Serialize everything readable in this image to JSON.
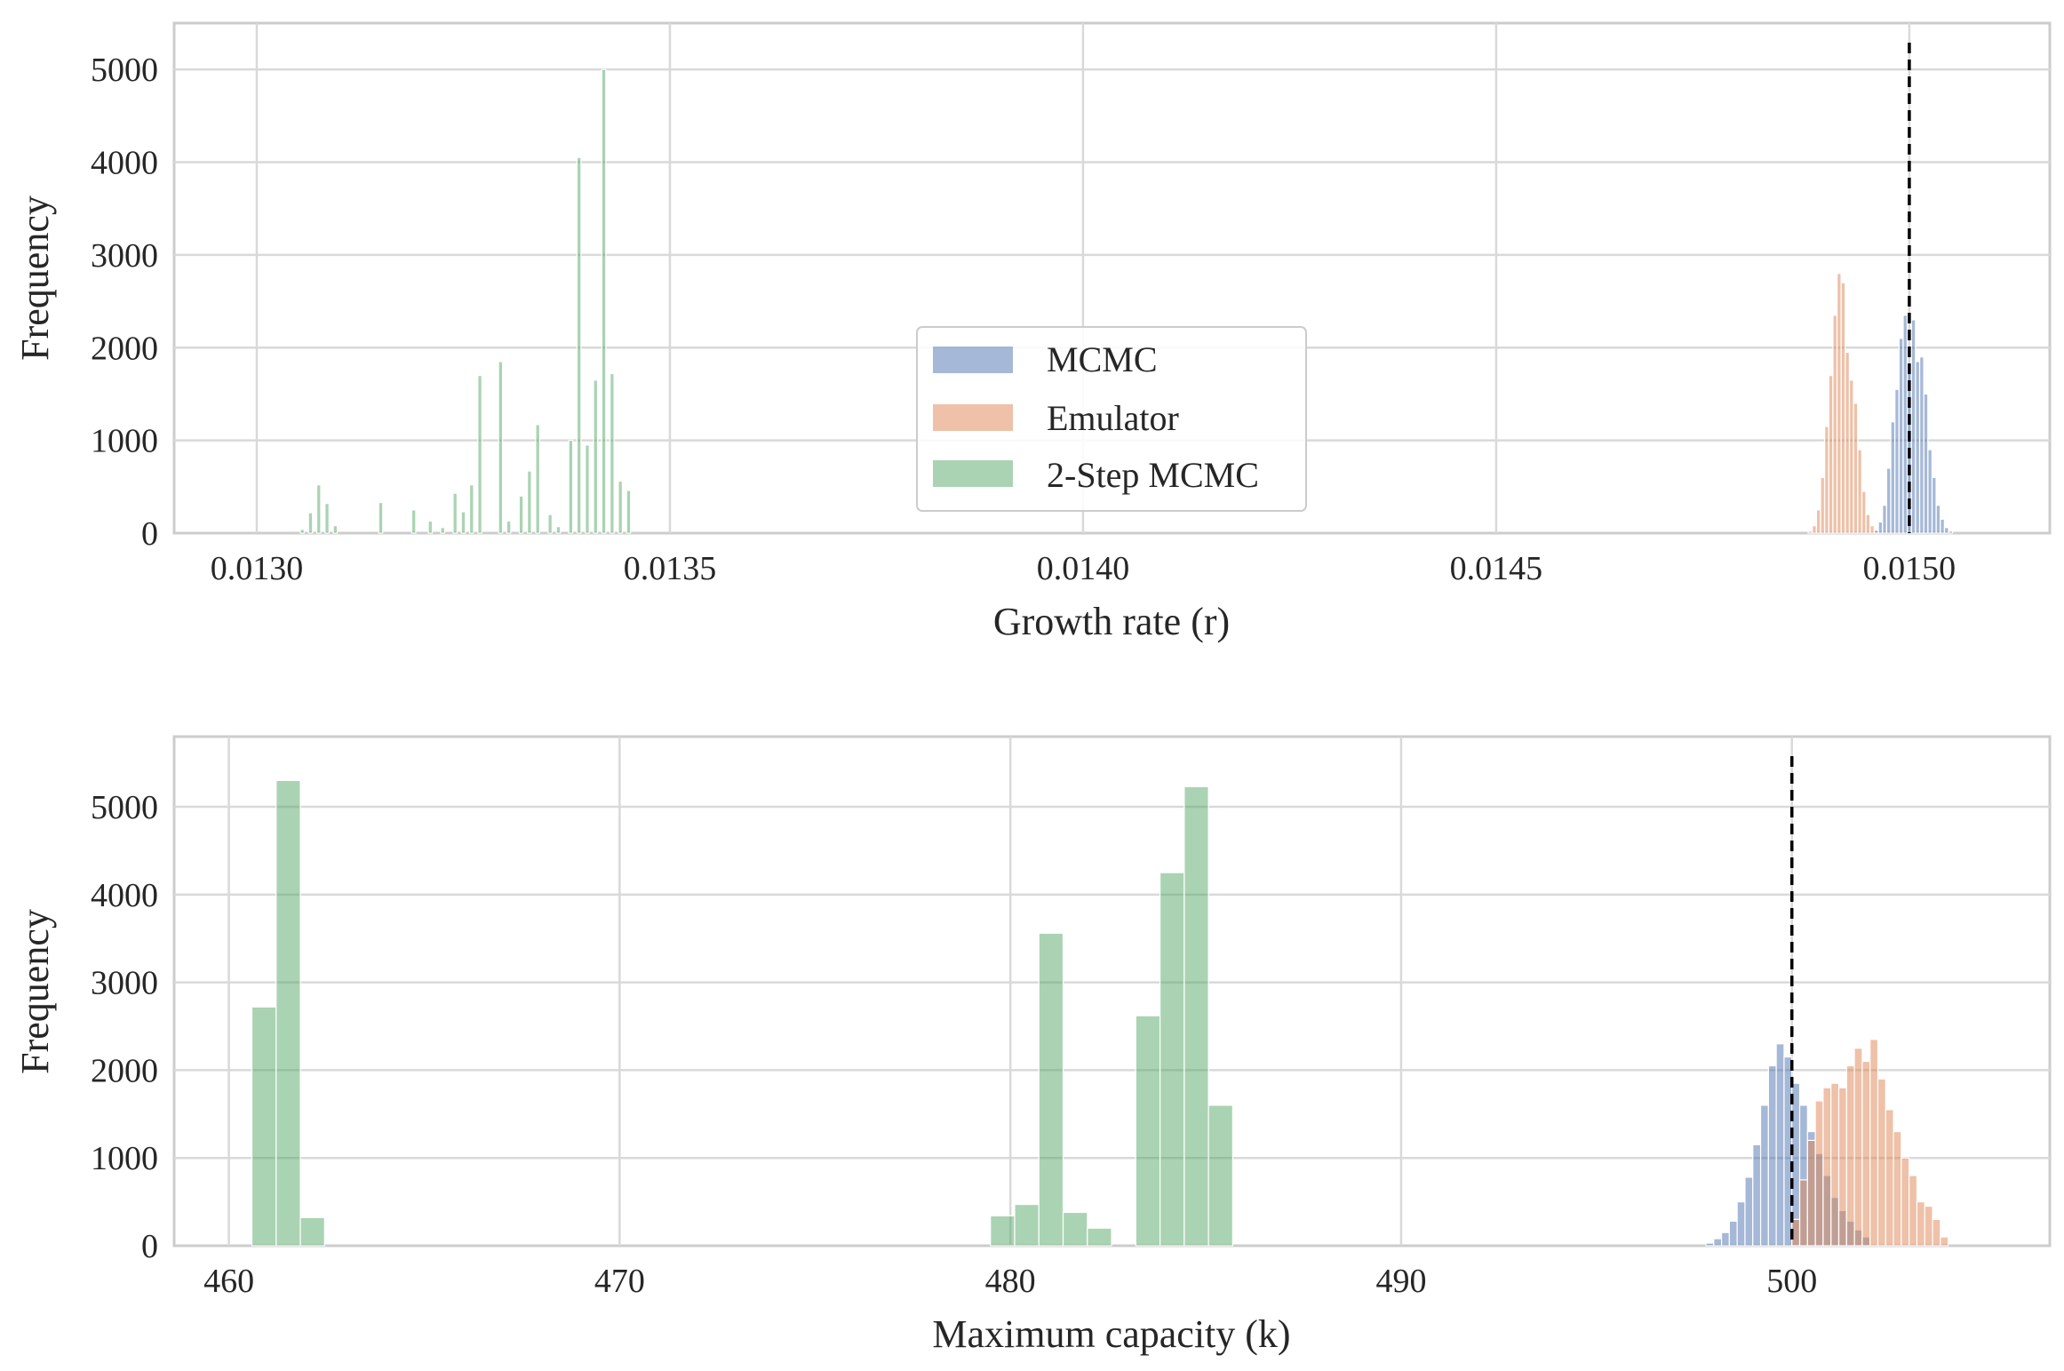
{
  "colors": {
    "mcmc": "#4C72B0",
    "emulator": "#DD8452",
    "two_step": "#55A868",
    "grid": "#d9d9d9",
    "frame": "#cccccc",
    "reference_line": "#000000"
  },
  "legend": {
    "placement": "center",
    "entries": [
      {
        "key": "mcmc",
        "label": "MCMC"
      },
      {
        "key": "emulator",
        "label": "Emulator"
      },
      {
        "key": "two_step",
        "label": "2-Step MCMC"
      }
    ]
  },
  "chart_data": [
    {
      "type": "bar",
      "title": "",
      "xlabel": "Growth rate (r)",
      "ylabel": "Frequency",
      "xlim": [
        0.0129,
        0.01517
      ],
      "ylim": [
        0,
        5500
      ],
      "xticks": [
        0.013,
        0.0135,
        0.014,
        0.0145,
        0.015
      ],
      "xtick_labels": [
        "0.0130",
        "0.0135",
        "0.0140",
        "0.0145",
        "0.0150"
      ],
      "yticks": [
        0,
        1000,
        2000,
        3000,
        4000,
        5000
      ],
      "ytick_labels": [
        "0",
        "1000",
        "2000",
        "3000",
        "4000",
        "5000"
      ],
      "grid": true,
      "reference_line_x": 0.015,
      "series": [
        {
          "name": "MCMC",
          "key": "mcmc",
          "bin_width": 4.8e-06,
          "bins": [
            [
              0.01496,
              40
            ],
            [
              0.014965,
              120
            ],
            [
              0.01497,
              300
            ],
            [
              0.014975,
              700
            ],
            [
              0.01498,
              1200
            ],
            [
              0.014985,
              1550
            ],
            [
              0.01499,
              2100
            ],
            [
              0.014995,
              2350
            ],
            [
              0.015,
              1800
            ],
            [
              0.015005,
              2300
            ],
            [
              0.01501,
              1850
            ],
            [
              0.015015,
              1900
            ],
            [
              0.01502,
              1500
            ],
            [
              0.015025,
              900
            ],
            [
              0.01503,
              600
            ],
            [
              0.015035,
              300
            ],
            [
              0.01504,
              150
            ],
            [
              0.015045,
              60
            ],
            [
              0.01505,
              20
            ]
          ]
        },
        {
          "name": "Emulator",
          "key": "emulator",
          "bin_width": 4.8e-06,
          "bins": [
            [
              0.01488,
              20
            ],
            [
              0.014885,
              80
            ],
            [
              0.01489,
              250
            ],
            [
              0.014895,
              600
            ],
            [
              0.0149,
              1150
            ],
            [
              0.014905,
              1700
            ],
            [
              0.01491,
              2350
            ],
            [
              0.014915,
              2800
            ],
            [
              0.01492,
              2700
            ],
            [
              0.014925,
              1950
            ],
            [
              0.01493,
              1650
            ],
            [
              0.014935,
              1400
            ],
            [
              0.01494,
              900
            ],
            [
              0.014945,
              450
            ],
            [
              0.01495,
              200
            ],
            [
              0.014955,
              80
            ],
            [
              0.01496,
              30
            ]
          ]
        },
        {
          "name": "2-Step MCMC",
          "key": "two_step",
          "bin_width": 4.8e-06,
          "bins": [
            [
              0.013055,
              40
            ],
            [
              0.013065,
              220
            ],
            [
              0.013075,
              520
            ],
            [
              0.013085,
              320
            ],
            [
              0.013095,
              80
            ],
            [
              0.01315,
              330
            ],
            [
              0.01319,
              250
            ],
            [
              0.01321,
              130
            ],
            [
              0.013225,
              60
            ],
            [
              0.01324,
              430
            ],
            [
              0.01325,
              230
            ],
            [
              0.01326,
              520
            ],
            [
              0.01327,
              1700
            ],
            [
              0.013295,
              1850
            ],
            [
              0.013305,
              130
            ],
            [
              0.01332,
              400
            ],
            [
              0.01333,
              670
            ],
            [
              0.01334,
              1170
            ],
            [
              0.013355,
              200
            ],
            [
              0.013365,
              70
            ],
            [
              0.01338,
              1000
            ],
            [
              0.01339,
              4050
            ],
            [
              0.0134,
              950
            ],
            [
              0.01341,
              1650
            ],
            [
              0.01342,
              5000
            ],
            [
              0.01343,
              1720
            ],
            [
              0.01344,
              560
            ],
            [
              0.01345,
              460
            ]
          ]
        }
      ]
    },
    {
      "type": "bar",
      "title": "",
      "xlabel": "Maximum capacity (k)",
      "ylabel": "Frequency",
      "xlim": [
        458.6,
        506.6
      ],
      "ylim": [
        0,
        5800
      ],
      "xticks": [
        460,
        470,
        480,
        490,
        500
      ],
      "xtick_labels": [
        "460",
        "470",
        "480",
        "490",
        "500"
      ],
      "yticks": [
        0,
        1000,
        2000,
        3000,
        4000,
        5000
      ],
      "ytick_labels": [
        "0",
        "1000",
        "2000",
        "3000",
        "4000",
        "5000"
      ],
      "grid": true,
      "reference_line_x": 500,
      "series": [
        {
          "name": "MCMC",
          "key": "mcmc",
          "bin_width": 0.2,
          "bins": [
            [
              497.9,
              30
            ],
            [
              498.1,
              80
            ],
            [
              498.3,
              150
            ],
            [
              498.5,
              280
            ],
            [
              498.7,
              500
            ],
            [
              498.9,
              780
            ],
            [
              499.1,
              1150
            ],
            [
              499.3,
              1600
            ],
            [
              499.5,
              2050
            ],
            [
              499.7,
              2300
            ],
            [
              499.9,
              2150
            ],
            [
              500.1,
              1850
            ],
            [
              500.3,
              1600
            ],
            [
              500.5,
              1300
            ],
            [
              500.7,
              1050
            ],
            [
              500.9,
              800
            ],
            [
              501.1,
              550
            ],
            [
              501.3,
              400
            ],
            [
              501.5,
              280
            ],
            [
              501.7,
              180
            ],
            [
              501.9,
              100
            ]
          ]
        },
        {
          "name": "Emulator",
          "key": "emulator",
          "bin_width": 0.2,
          "bins": [
            [
              500.1,
              300
            ],
            [
              500.3,
              750
            ],
            [
              500.5,
              1200
            ],
            [
              500.7,
              1650
            ],
            [
              500.9,
              1800
            ],
            [
              501.1,
              1850
            ],
            [
              501.3,
              1800
            ],
            [
              501.5,
              2050
            ],
            [
              501.7,
              2250
            ],
            [
              501.9,
              2100
            ],
            [
              502.1,
              2350
            ],
            [
              502.3,
              1900
            ],
            [
              502.5,
              1550
            ],
            [
              502.7,
              1300
            ],
            [
              502.9,
              1000
            ],
            [
              503.1,
              800
            ],
            [
              503.3,
              500
            ],
            [
              503.5,
              450
            ],
            [
              503.7,
              300
            ],
            [
              503.9,
              100
            ]
          ]
        },
        {
          "name": "2-Step MCMC",
          "key": "two_step",
          "bin_width": 0.62,
          "bins": [
            [
              460.9,
              2720
            ],
            [
              461.52,
              5300
            ],
            [
              462.14,
              320
            ],
            [
              479.8,
              340
            ],
            [
              480.42,
              470
            ],
            [
              481.04,
              3560
            ],
            [
              481.66,
              380
            ],
            [
              482.28,
              200
            ],
            [
              483.52,
              2620
            ],
            [
              484.14,
              4250
            ],
            [
              484.76,
              5230
            ],
            [
              485.38,
              1600
            ]
          ]
        }
      ]
    }
  ]
}
